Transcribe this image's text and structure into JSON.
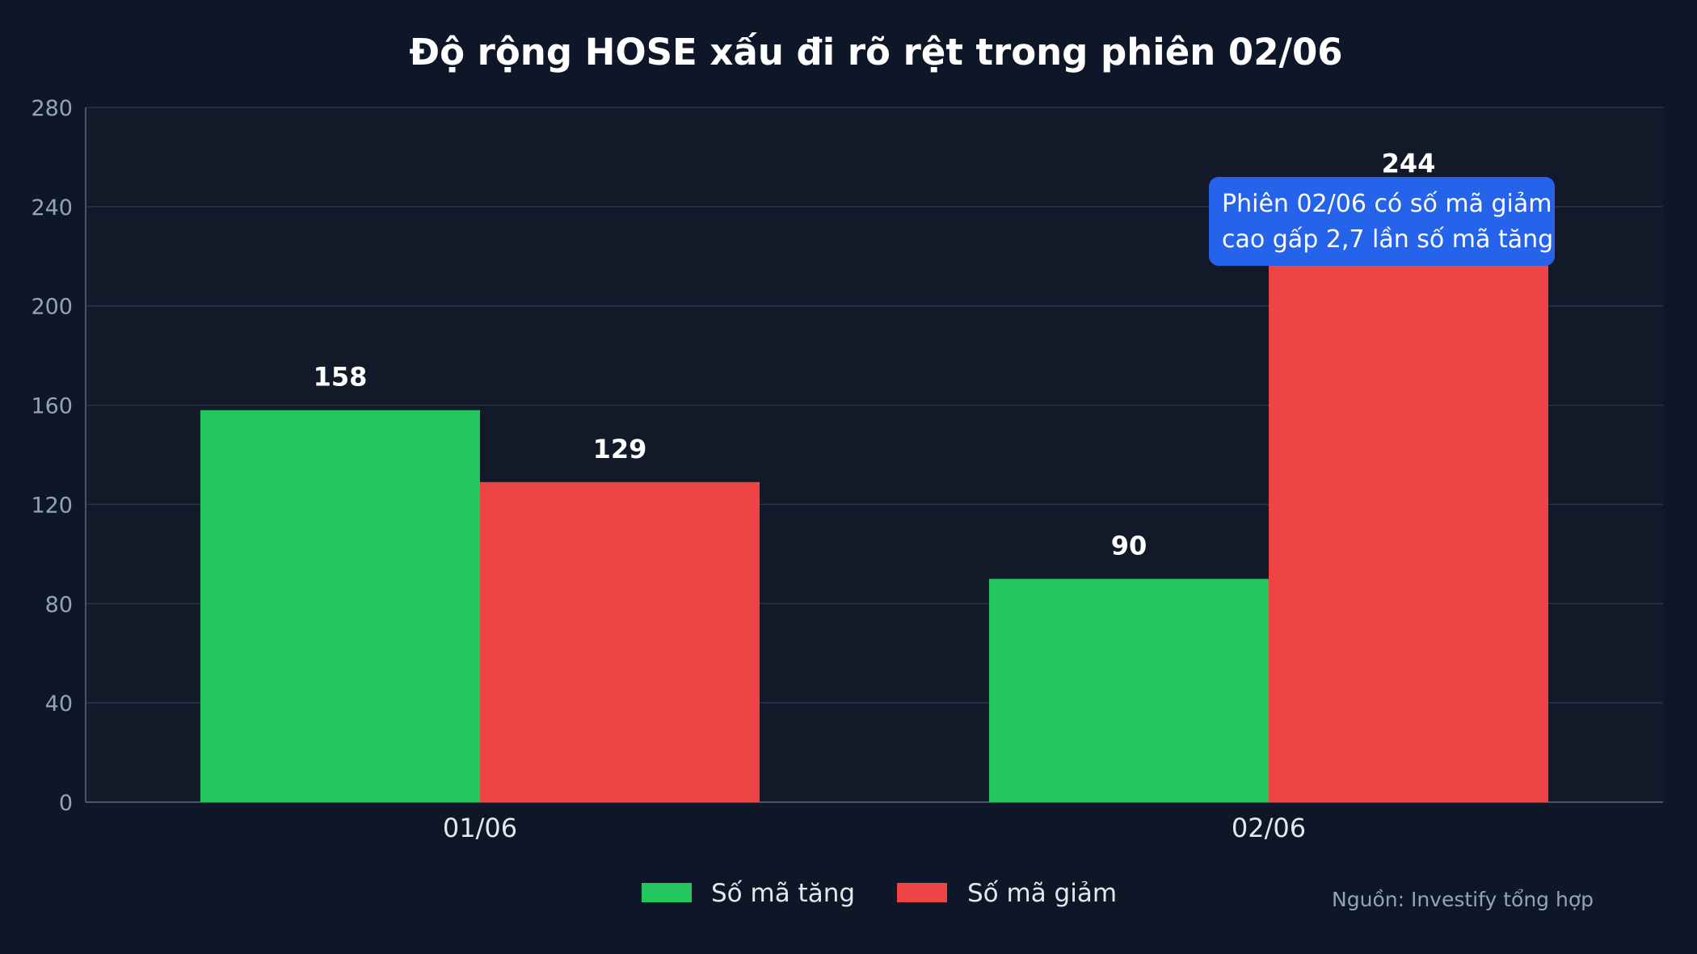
{
  "chart_data": {
    "type": "bar",
    "title": "Độ rộng HOSE xấu đi rõ rệt trong phiên 02/06",
    "categories": [
      "01/06",
      "02/06"
    ],
    "series": [
      {
        "name": "Số mã tăng",
        "values": [
          158,
          90
        ],
        "color": "#22c55e"
      },
      {
        "name": "Số mã giảm",
        "values": [
          129,
          244
        ],
        "color": "#ef4444"
      }
    ],
    "ylim": [
      0,
      280
    ],
    "yticks": [
      0,
      40,
      80,
      120,
      160,
      200,
      240,
      280
    ],
    "xlabel": "",
    "ylabel": "",
    "grid": true,
    "legend_position": "bottom-center",
    "annotation": {
      "lines": [
        "Phiên 02/06 có số mã giảm",
        "cao gấp 2,7 lần số mã tăng"
      ],
      "color": "#2563eb"
    },
    "source": "Nguồn: Investify tổng hợp"
  },
  "colors": {
    "background": "#0d1727",
    "plot_background": "#121929",
    "grid": "#2a3447",
    "axis": "#475569"
  }
}
